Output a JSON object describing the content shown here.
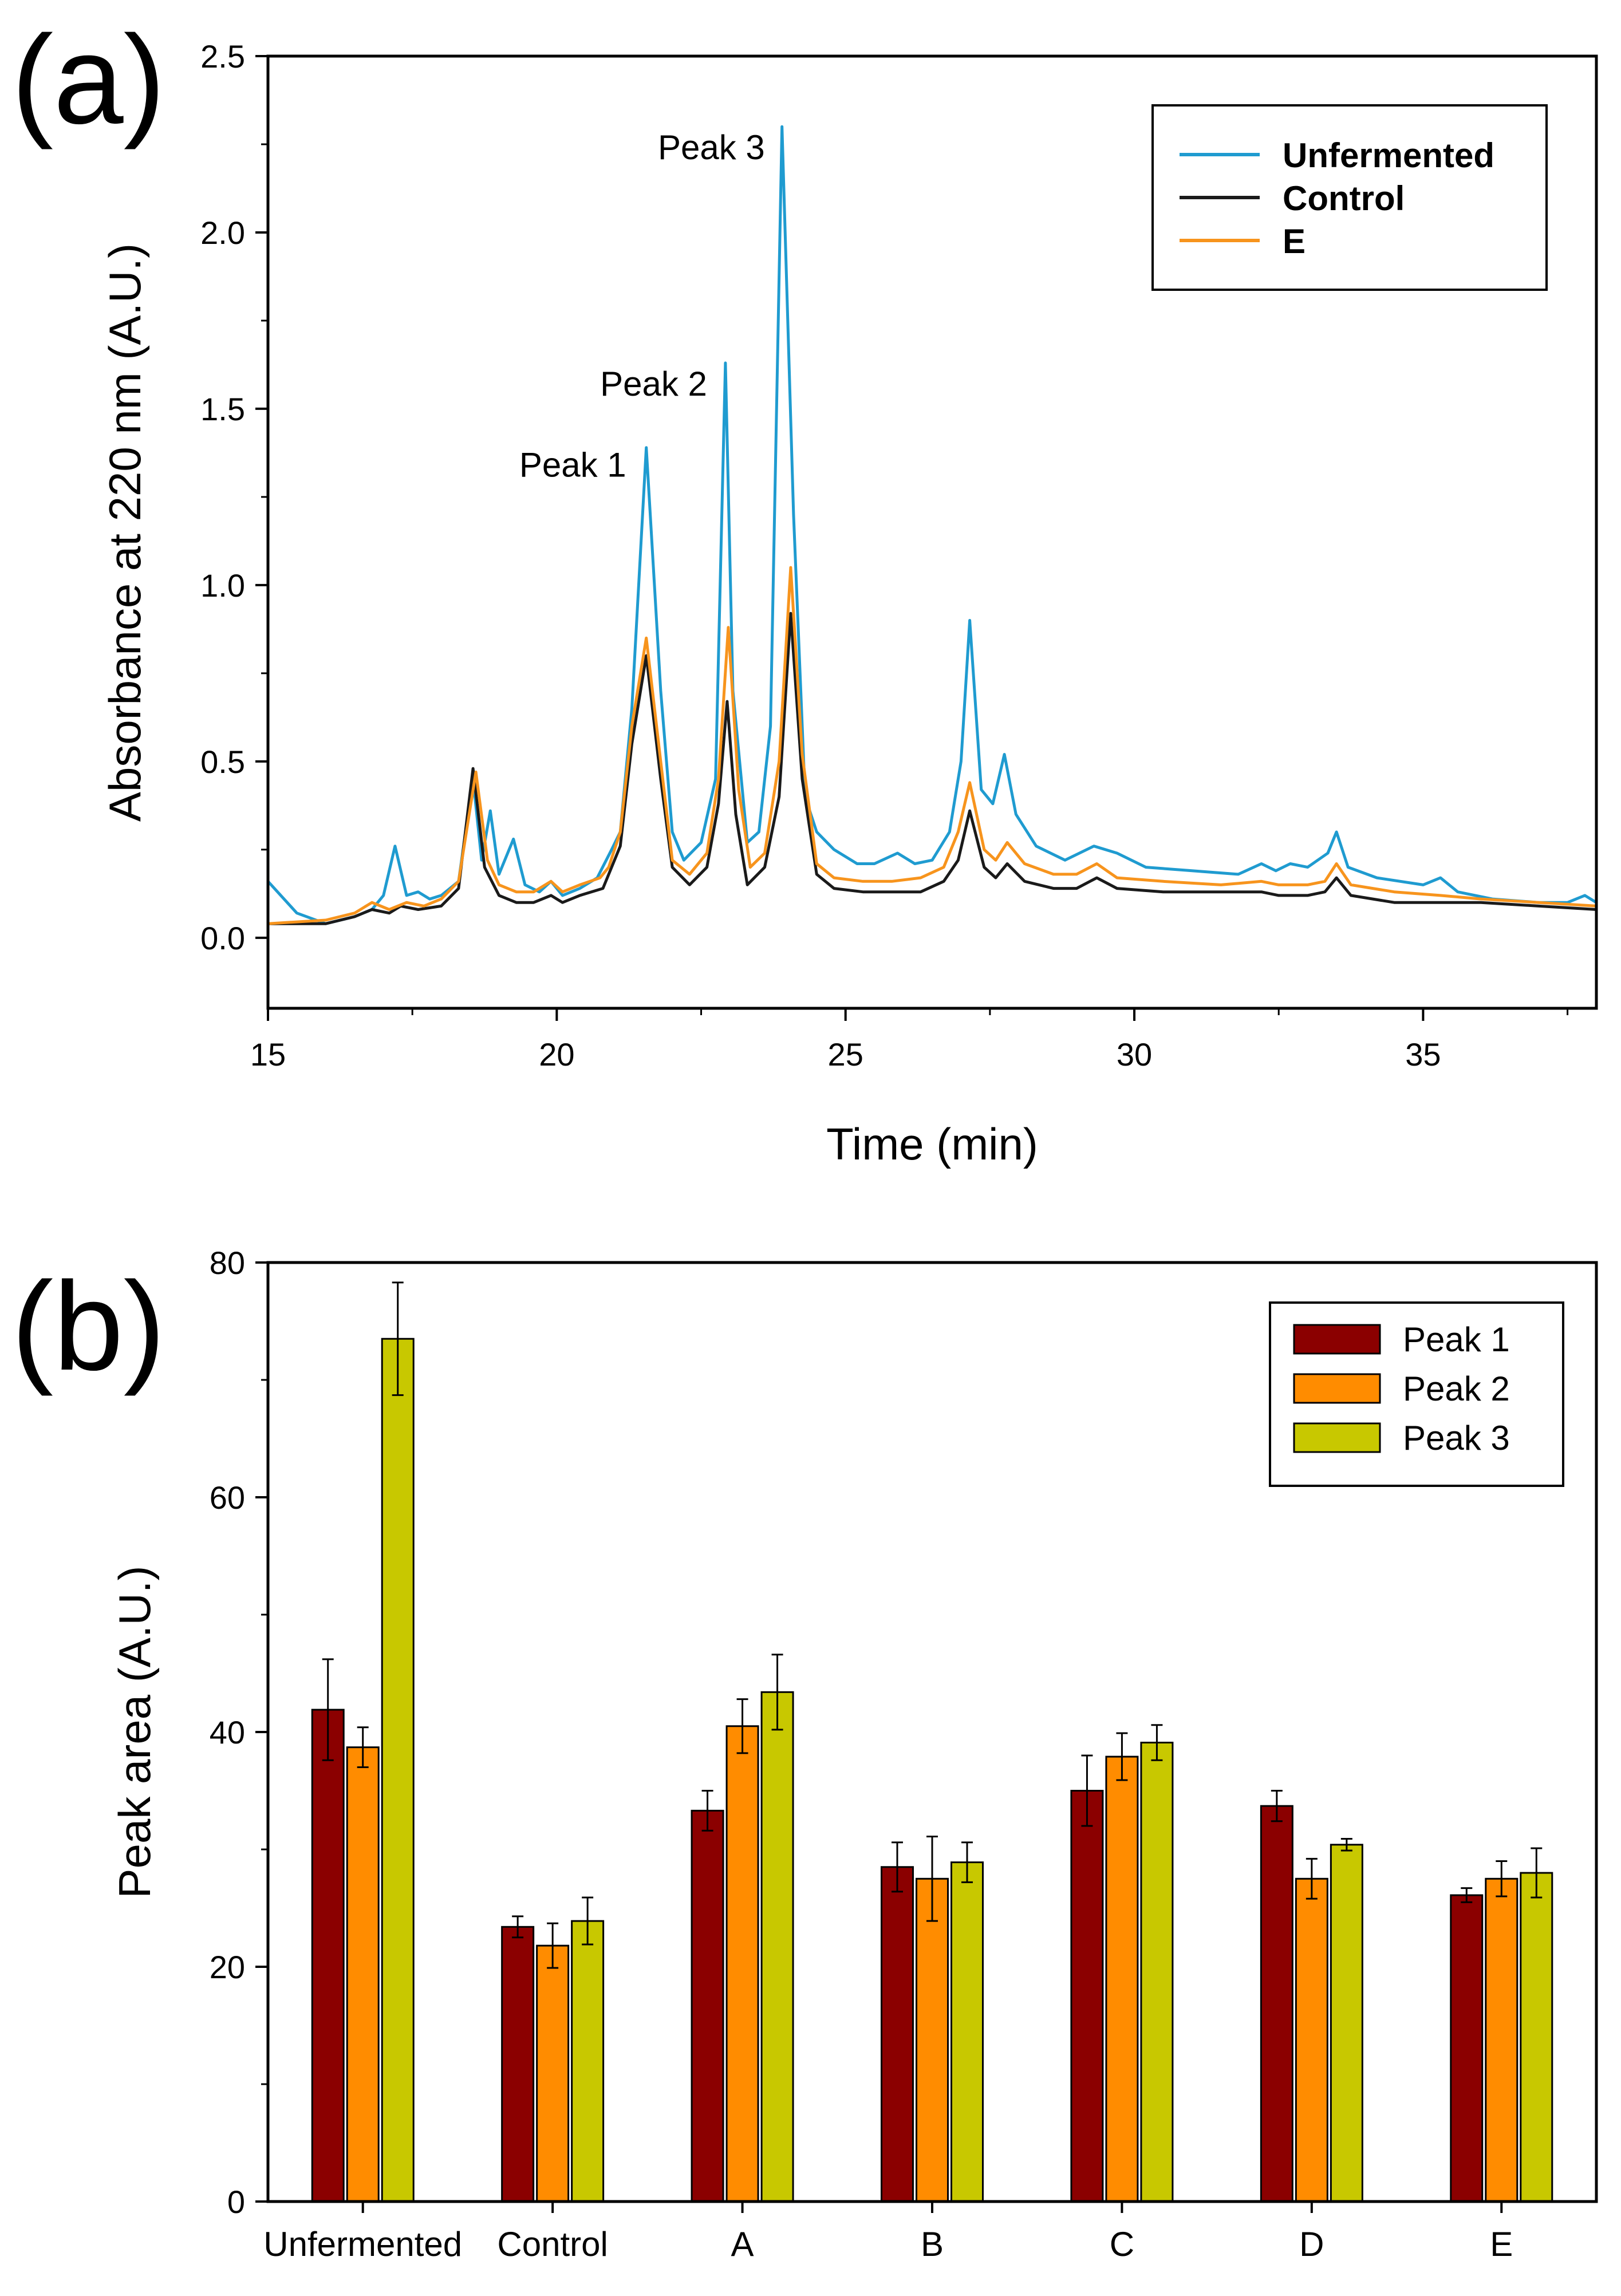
{
  "chart_data": [
    {
      "panel": "(a)",
      "type": "line",
      "xlabel": "Time (min)",
      "ylabel": "Absorbance at 220 nm (A.U.)",
      "xlim": [
        15,
        38
      ],
      "ylim": [
        -0.2,
        2.5
      ],
      "xticks": [
        "15",
        "20",
        "25",
        "30",
        "35"
      ],
      "yticks": [
        "0.0",
        "0.5",
        "1.0",
        "1.5",
        "2.0",
        "2.5"
      ],
      "grid": false,
      "legend_position": "top-right",
      "annotations": [
        {
          "text": "Peak 1",
          "x": 21.5,
          "y": 1.34
        },
        {
          "text": "Peak 2",
          "x": 22.9,
          "y": 1.57
        },
        {
          "text": "Peak 3",
          "x": 23.9,
          "y": 2.24
        }
      ],
      "series": [
        {
          "name": "Unfermented",
          "color": "#1f9bd0",
          "points": [
            [
              15.0,
              0.16
            ],
            [
              15.5,
              0.07
            ],
            [
              16.0,
              0.04
            ],
            [
              16.5,
              0.06
            ],
            [
              16.8,
              0.08
            ],
            [
              17.0,
              0.12
            ],
            [
              17.2,
              0.26
            ],
            [
              17.4,
              0.12
            ],
            [
              17.6,
              0.13
            ],
            [
              17.8,
              0.11
            ],
            [
              18.0,
              0.12
            ],
            [
              18.3,
              0.16
            ],
            [
              18.55,
              0.45
            ],
            [
              18.7,
              0.22
            ],
            [
              18.85,
              0.36
            ],
            [
              19.0,
              0.18
            ],
            [
              19.25,
              0.28
            ],
            [
              19.45,
              0.15
            ],
            [
              19.7,
              0.13
            ],
            [
              19.9,
              0.16
            ],
            [
              20.1,
              0.12
            ],
            [
              20.4,
              0.14
            ],
            [
              20.7,
              0.17
            ],
            [
              20.95,
              0.25
            ],
            [
              21.1,
              0.3
            ],
            [
              21.3,
              0.65
            ],
            [
              21.55,
              1.39
            ],
            [
              21.8,
              0.7
            ],
            [
              22.0,
              0.3
            ],
            [
              22.2,
              0.22
            ],
            [
              22.5,
              0.27
            ],
            [
              22.75,
              0.45
            ],
            [
              22.92,
              1.63
            ],
            [
              23.05,
              0.7
            ],
            [
              23.3,
              0.27
            ],
            [
              23.5,
              0.3
            ],
            [
              23.7,
              0.6
            ],
            [
              23.9,
              2.3
            ],
            [
              24.1,
              1.2
            ],
            [
              24.3,
              0.4
            ],
            [
              24.5,
              0.3
            ],
            [
              24.8,
              0.25
            ],
            [
              25.2,
              0.21
            ],
            [
              25.5,
              0.21
            ],
            [
              25.9,
              0.24
            ],
            [
              26.2,
              0.21
            ],
            [
              26.5,
              0.22
            ],
            [
              26.8,
              0.3
            ],
            [
              27.0,
              0.5
            ],
            [
              27.15,
              0.9
            ],
            [
              27.35,
              0.42
            ],
            [
              27.55,
              0.38
            ],
            [
              27.75,
              0.52
            ],
            [
              27.95,
              0.35
            ],
            [
              28.3,
              0.26
            ],
            [
              28.8,
              0.22
            ],
            [
              29.3,
              0.26
            ],
            [
              29.7,
              0.24
            ],
            [
              30.2,
              0.2
            ],
            [
              31.0,
              0.19
            ],
            [
              31.8,
              0.18
            ],
            [
              32.2,
              0.21
            ],
            [
              32.45,
              0.19
            ],
            [
              32.7,
              0.21
            ],
            [
              33.0,
              0.2
            ],
            [
              33.35,
              0.24
            ],
            [
              33.5,
              0.3
            ],
            [
              33.7,
              0.2
            ],
            [
              34.2,
              0.17
            ],
            [
              35.0,
              0.15
            ],
            [
              35.3,
              0.17
            ],
            [
              35.6,
              0.13
            ],
            [
              36.2,
              0.11
            ],
            [
              37.0,
              0.1
            ],
            [
              37.5,
              0.1
            ],
            [
              37.8,
              0.12
            ],
            [
              38.0,
              0.1
            ]
          ]
        },
        {
          "name": "Control",
          "color": "#1a1a1a",
          "points": [
            [
              15.0,
              0.04
            ],
            [
              16.0,
              0.04
            ],
            [
              16.5,
              0.06
            ],
            [
              16.8,
              0.08
            ],
            [
              17.1,
              0.07
            ],
            [
              17.3,
              0.09
            ],
            [
              17.6,
              0.08
            ],
            [
              18.0,
              0.09
            ],
            [
              18.3,
              0.14
            ],
            [
              18.55,
              0.48
            ],
            [
              18.75,
              0.2
            ],
            [
              19.0,
              0.12
            ],
            [
              19.3,
              0.1
            ],
            [
              19.6,
              0.1
            ],
            [
              19.9,
              0.12
            ],
            [
              20.1,
              0.1
            ],
            [
              20.4,
              0.12
            ],
            [
              20.8,
              0.14
            ],
            [
              21.1,
              0.26
            ],
            [
              21.3,
              0.55
            ],
            [
              21.55,
              0.8
            ],
            [
              21.8,
              0.45
            ],
            [
              22.0,
              0.2
            ],
            [
              22.3,
              0.15
            ],
            [
              22.6,
              0.2
            ],
            [
              22.8,
              0.38
            ],
            [
              22.95,
              0.67
            ],
            [
              23.1,
              0.35
            ],
            [
              23.3,
              0.15
            ],
            [
              23.6,
              0.2
            ],
            [
              23.85,
              0.4
            ],
            [
              24.05,
              0.92
            ],
            [
              24.25,
              0.45
            ],
            [
              24.5,
              0.18
            ],
            [
              24.8,
              0.14
            ],
            [
              25.3,
              0.13
            ],
            [
              25.8,
              0.13
            ],
            [
              26.3,
              0.13
            ],
            [
              26.7,
              0.16
            ],
            [
              26.95,
              0.22
            ],
            [
              27.15,
              0.36
            ],
            [
              27.4,
              0.2
            ],
            [
              27.6,
              0.17
            ],
            [
              27.8,
              0.21
            ],
            [
              28.1,
              0.16
            ],
            [
              28.6,
              0.14
            ],
            [
              29.0,
              0.14
            ],
            [
              29.35,
              0.17
            ],
            [
              29.7,
              0.14
            ],
            [
              30.5,
              0.13
            ],
            [
              31.5,
              0.13
            ],
            [
              32.2,
              0.13
            ],
            [
              32.5,
              0.12
            ],
            [
              33.0,
              0.12
            ],
            [
              33.3,
              0.13
            ],
            [
              33.5,
              0.17
            ],
            [
              33.75,
              0.12
            ],
            [
              34.5,
              0.1
            ],
            [
              35.3,
              0.1
            ],
            [
              36.0,
              0.1
            ],
            [
              37.0,
              0.09
            ],
            [
              38.0,
              0.08
            ]
          ]
        },
        {
          "name": "E",
          "color": "#f7941d",
          "points": [
            [
              15.0,
              0.04
            ],
            [
              16.0,
              0.05
            ],
            [
              16.5,
              0.07
            ],
            [
              16.8,
              0.1
            ],
            [
              17.1,
              0.08
            ],
            [
              17.4,
              0.1
            ],
            [
              17.7,
              0.09
            ],
            [
              18.0,
              0.11
            ],
            [
              18.3,
              0.16
            ],
            [
              18.6,
              0.47
            ],
            [
              18.8,
              0.22
            ],
            [
              19.0,
              0.15
            ],
            [
              19.3,
              0.13
            ],
            [
              19.6,
              0.13
            ],
            [
              19.9,
              0.16
            ],
            [
              20.1,
              0.13
            ],
            [
              20.4,
              0.15
            ],
            [
              20.75,
              0.17
            ],
            [
              20.9,
              0.2
            ],
            [
              21.1,
              0.3
            ],
            [
              21.3,
              0.6
            ],
            [
              21.55,
              0.85
            ],
            [
              21.8,
              0.5
            ],
            [
              22.0,
              0.22
            ],
            [
              22.3,
              0.18
            ],
            [
              22.6,
              0.24
            ],
            [
              22.8,
              0.45
            ],
            [
              22.97,
              0.88
            ],
            [
              23.15,
              0.42
            ],
            [
              23.35,
              0.2
            ],
            [
              23.6,
              0.24
            ],
            [
              23.85,
              0.5
            ],
            [
              24.05,
              1.05
            ],
            [
              24.25,
              0.52
            ],
            [
              24.5,
              0.21
            ],
            [
              24.8,
              0.17
            ],
            [
              25.3,
              0.16
            ],
            [
              25.8,
              0.16
            ],
            [
              26.3,
              0.17
            ],
            [
              26.7,
              0.2
            ],
            [
              26.95,
              0.3
            ],
            [
              27.15,
              0.44
            ],
            [
              27.4,
              0.25
            ],
            [
              27.6,
              0.22
            ],
            [
              27.8,
              0.27
            ],
            [
              28.1,
              0.21
            ],
            [
              28.6,
              0.18
            ],
            [
              29.0,
              0.18
            ],
            [
              29.35,
              0.21
            ],
            [
              29.7,
              0.17
            ],
            [
              30.5,
              0.16
            ],
            [
              31.5,
              0.15
            ],
            [
              32.2,
              0.16
            ],
            [
              32.5,
              0.15
            ],
            [
              33.0,
              0.15
            ],
            [
              33.3,
              0.16
            ],
            [
              33.5,
              0.21
            ],
            [
              33.75,
              0.15
            ],
            [
              34.5,
              0.13
            ],
            [
              35.3,
              0.12
            ],
            [
              36.0,
              0.11
            ],
            [
              37.0,
              0.1
            ],
            [
              38.0,
              0.09
            ]
          ]
        }
      ]
    },
    {
      "panel": "(b)",
      "type": "bar",
      "xlabel": "",
      "ylabel": "Peak area (A.U.)",
      "ylim": [
        0,
        80
      ],
      "yticks": [
        "0",
        "20",
        "40",
        "60",
        "80"
      ],
      "grid": false,
      "legend_position": "top-right",
      "categories": [
        "Unfermented",
        "Control",
        "A",
        "B",
        "C",
        "D",
        "E"
      ],
      "series": [
        {
          "name": "Peak 1",
          "color": "#8b0000",
          "values": [
            41.9,
            23.4,
            33.3,
            28.5,
            35.0,
            33.7,
            26.1
          ],
          "errors": [
            4.3,
            0.9,
            1.7,
            2.1,
            3.0,
            1.3,
            0.6
          ]
        },
        {
          "name": "Peak 2",
          "color": "#ff8c00",
          "values": [
            38.7,
            21.8,
            40.5,
            27.5,
            37.9,
            27.5,
            27.5
          ],
          "errors": [
            1.7,
            1.9,
            2.3,
            3.6,
            2.0,
            1.7,
            1.5
          ]
        },
        {
          "name": "Peak 3",
          "color": "#c8c800",
          "values": [
            73.5,
            23.9,
            43.4,
            28.9,
            39.1,
            30.4,
            28.0
          ],
          "errors": [
            4.8,
            2.0,
            3.2,
            1.7,
            1.5,
            0.5,
            2.1
          ]
        }
      ]
    }
  ]
}
